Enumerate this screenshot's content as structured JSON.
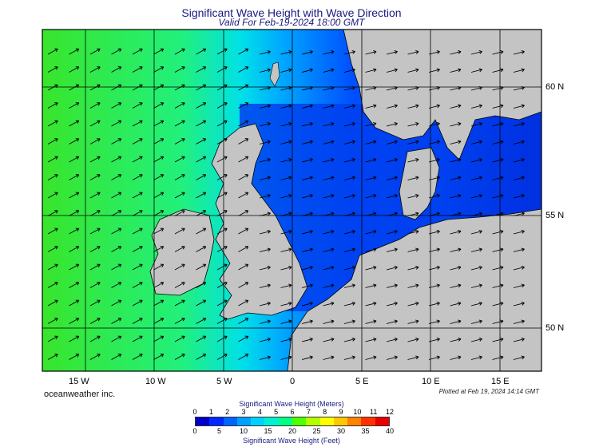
{
  "title": "Significant Wave Height with Wave Direction",
  "subtitle": "Valid For Feb-19-2024 18:00 GMT",
  "longitude_labels": [
    "15 W",
    "10 W",
    "5 W",
    "0",
    "5 E",
    "10 E",
    "15 E"
  ],
  "latitude_labels": [
    "60 N",
    "55 N",
    "50 N"
  ],
  "credit": "oceanweather inc.",
  "plotted_note": "Plotted at Feb 19, 2024 14:14 GMT",
  "legend": {
    "meters_title": "Significant Wave Height (Meters)",
    "feet_title": "Significant Wave Height (Feet)",
    "meters_ticks": [
      "0",
      "1",
      "2",
      "3",
      "4",
      "5",
      "6",
      "7",
      "8",
      "9",
      "10",
      "11",
      "12"
    ],
    "feet_ticks": [
      "0",
      "5",
      "10",
      "15",
      "20",
      "25",
      "30",
      "35",
      "40"
    ],
    "colors": [
      "#0000c8",
      "#0028ff",
      "#0064ff",
      "#00a0ff",
      "#00d2ff",
      "#00f0d2",
      "#00ff82",
      "#50ff00",
      "#b4ff00",
      "#ffff00",
      "#ffc800",
      "#ff8200",
      "#ff3200",
      "#e60000"
    ]
  },
  "colors": {
    "land": "#c4c4c4",
    "open_ocean": "#33ee33",
    "coastal_wave_low": "#0033dd",
    "coastal_wave_mid": "#00aaff",
    "arrows": "#000000"
  }
}
